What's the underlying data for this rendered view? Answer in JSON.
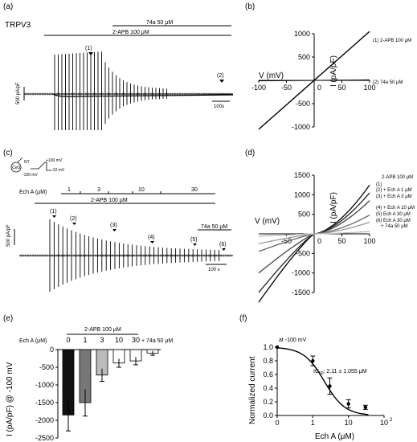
{
  "panels": {
    "a": {
      "label": "(a)",
      "title": "TRPV3",
      "bar_74a": "74a 50 μM",
      "bar_2apb": "2-APB 100 μM",
      "marker1": "(1)",
      "marker2": "(2)",
      "scale_y": "500 pA/pF",
      "scale_x": "100s"
    },
    "b": {
      "label": "(b)",
      "ylabel": "I (pA/pF)",
      "xlabel": "V (mV)",
      "legend1": "(1) 2-APB 100 μM",
      "legend2": "(2) 74a 50 μM"
    },
    "c": {
      "label": "(c)",
      "cell": "CeO",
      "nt": "NT",
      "v_high": "+100 mV",
      "v_low": "-100 mV",
      "v_hold": "-10 mV",
      "echa": "Ech A (μM)",
      "conc": [
        "1",
        "3",
        "10",
        "30"
      ],
      "bar_2apb": "2-APB 100 μM",
      "bar_74a": "74a 50 μM",
      "markers": [
        "(1)",
        "(2)",
        "(3)",
        "(4)",
        "(5)",
        "(6)"
      ],
      "scale_y": "500 pA/pF",
      "scale_x": "100 s"
    },
    "d": {
      "label": "(d)",
      "ylabel": "I (pA/pF)",
      "xlabel": "V (mV)",
      "legend": [
        "2-APB 100 μM",
        "(1)",
        "(2) + Ech A 1 μM",
        "(3) + Ech A 3 μM",
        "(4) + Ech A 10 μM",
        "(5) Ech A 30 μM",
        "(6) Ech A 30 μM",
        "+ 74a 50 μM"
      ]
    },
    "e": {
      "label": "(e)",
      "echa": "Ech A (μM)",
      "bar_2apb": "2-APB 100 μM",
      "plus74a": "+ 74a 50 μM",
      "ylabel": "I (pA/pF) @ -100 mV"
    },
    "f": {
      "label": "(f)",
      "note": "at -100 mV",
      "ic50": "IC",
      "ic50_sub": "50",
      "ic50_val": ": 2.11 ± 1.055 μM",
      "ylabel": "Normalized current",
      "xlabel": "Ech A (μM)"
    }
  },
  "chart_data": [
    {
      "type": "line",
      "panel": "b",
      "xlabel": "V (mV)",
      "ylabel": "I (pA/pF)",
      "xlim": [
        -100,
        100
      ],
      "ylim": [
        -1000,
        1000
      ],
      "xticks": [
        -100,
        -50,
        50,
        100
      ],
      "yticks": [
        -1000,
        -500,
        500,
        1000
      ],
      "series": [
        {
          "name": "(1) 2-APB 100 μM",
          "x": [
            -100,
            100
          ],
          "y": [
            -1050,
            1050
          ]
        },
        {
          "name": "(2) 74a 50 μM",
          "x": [
            -100,
            100
          ],
          "y": [
            -10,
            10
          ]
        }
      ]
    },
    {
      "type": "line",
      "panel": "d",
      "xlabel": "V (mV)",
      "ylabel": "I (pA/pF)",
      "xlim": [
        -100,
        100
      ],
      "ylim": [
        -1500,
        1500
      ],
      "xticks": [
        -50,
        50,
        100
      ],
      "yticks": [
        -1500,
        -1000,
        -500,
        500,
        1000,
        1500
      ],
      "series": [
        {
          "name": "(1)",
          "v_neg": -1750,
          "v_pos": 1250,
          "color": "#000000"
        },
        {
          "name": "(2)",
          "v_neg": -1500,
          "v_pos": 1050,
          "color": "#222222"
        },
        {
          "name": "(3)",
          "v_neg": -1000,
          "v_pos": 850,
          "color": "#444444"
        },
        {
          "name": "(4)",
          "v_neg": -450,
          "v_pos": 480,
          "color": "#666666"
        },
        {
          "name": "(5)",
          "v_neg": -250,
          "v_pos": 300,
          "color": "#999999"
        },
        {
          "name": "(6)",
          "v_neg": -60,
          "v_pos": 60,
          "color": "#bbbbbb"
        }
      ]
    },
    {
      "type": "bar",
      "panel": "e",
      "categories": [
        "0",
        "1",
        "3",
        "10",
        "30",
        "+ 74a"
      ],
      "values": [
        -1850,
        -1500,
        -720,
        -380,
        -320,
        -100
      ],
      "errors": [
        450,
        380,
        180,
        120,
        110,
        60
      ],
      "colors": [
        "#111111",
        "#777777",
        "#bbbbbb",
        "#ffffff",
        "#ffffff",
        "#ffffff"
      ],
      "ylabel": "I (pA/pF) @ -100 mV",
      "ylim": [
        -2500,
        0
      ],
      "yticks": [
        0,
        -500,
        -1000,
        -1500,
        -2000,
        -2500
      ]
    },
    {
      "type": "scatter",
      "panel": "f",
      "xscale": "log",
      "xlabel": "Ech A (μM)",
      "ylabel": "Normalized current",
      "xlim": [
        0,
        100
      ],
      "ylim": [
        0,
        1.0
      ],
      "yticks": [
        0,
        0.2,
        0.4,
        0.6,
        0.8,
        1.0
      ],
      "x": [
        0,
        1,
        3,
        10,
        30
      ],
      "y": [
        1.0,
        0.8,
        0.43,
        0.17,
        0.12
      ],
      "yerr": [
        0.0,
        0.07,
        0.12,
        0.06,
        0.03
      ],
      "fit": {
        "ic50": 2.11,
        "hill": 1.5
      }
    }
  ]
}
